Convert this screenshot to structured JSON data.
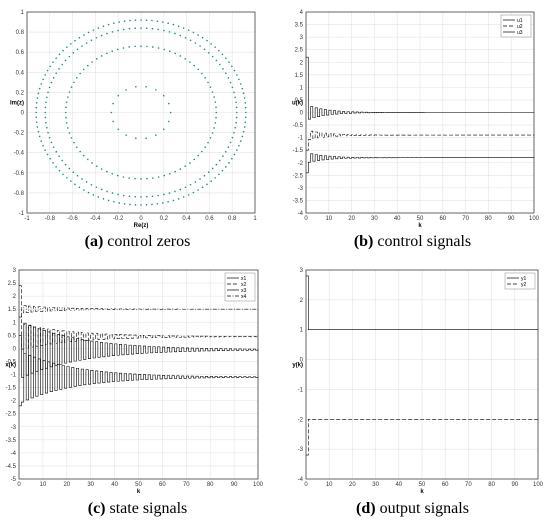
{
  "captions": [
    {
      "letter": "(a)",
      "text": " control zeros"
    },
    {
      "letter": "(b)",
      "text": " control signals"
    },
    {
      "letter": "(c)",
      "text": " state signals"
    },
    {
      "letter": "(d)",
      "text": " output signals"
    }
  ],
  "chart_data": [
    {
      "type": "scatter",
      "xlabel": "Re(z)",
      "ylabel": "Im(z)",
      "xlim": [
        -1,
        1
      ],
      "ylim": [
        -1,
        1
      ],
      "xticks": [
        -1,
        -0.8,
        -0.6,
        -0.4,
        -0.2,
        0,
        0.2,
        0.4,
        0.6,
        0.8,
        1
      ],
      "yticks": [
        -1,
        -0.8,
        -0.6,
        -0.4,
        -0.2,
        0,
        0.2,
        0.4,
        0.6,
        0.8,
        1
      ],
      "grid": true,
      "marker_color": "#1a8a8a",
      "rings": [
        {
          "radius": 0.92,
          "points": 120
        },
        {
          "radius": 0.84,
          "points": 104
        },
        {
          "radius": 0.66,
          "points": 80
        },
        {
          "radius": 0.26,
          "points": 18
        }
      ]
    },
    {
      "type": "line",
      "xlabel": "k",
      "ylabel": "u(k)",
      "xlim": [
        0,
        100
      ],
      "ylim": [
        -4,
        4
      ],
      "xticks": [
        0,
        10,
        20,
        30,
        40,
        50,
        60,
        70,
        80,
        90,
        100
      ],
      "yticks": [
        -4,
        -3.5,
        -3,
        -2.5,
        -2,
        -1.5,
        -1,
        -0.5,
        0,
        0.5,
        1,
        1.5,
        2,
        2.5,
        3,
        3.5,
        4
      ],
      "grid": true,
      "legend": "top-right",
      "series": [
        {
          "name": "u1",
          "style": "solid",
          "steady": 0,
          "initial": 2.2,
          "amplitude": 0.3,
          "decay": 0.12
        },
        {
          "name": "u2",
          "style": "dashed",
          "steady": -0.9,
          "initial": -1.5,
          "amplitude": 0.2,
          "decay": 0.12
        },
        {
          "name": "u3",
          "style": "solid",
          "steady": -1.8,
          "initial": -2.4,
          "amplitude": 0.2,
          "decay": 0.12
        }
      ]
    },
    {
      "type": "line",
      "xlabel": "k",
      "ylabel": "x(k)",
      "xlim": [
        0,
        100
      ],
      "ylim": [
        -5,
        3
      ],
      "xticks": [
        0,
        10,
        20,
        30,
        40,
        50,
        60,
        70,
        80,
        90,
        100
      ],
      "yticks": [
        -5,
        -4.5,
        -4,
        -3.5,
        -3,
        -2.5,
        -2,
        -1.5,
        -1,
        -0.5,
        0,
        0.5,
        1,
        1.5,
        2,
        2.5,
        3
      ],
      "grid": true,
      "legend": "top-right",
      "series": [
        {
          "name": "x1",
          "style": "solid",
          "steady": -1.1,
          "initial": -2.2,
          "amplitude": 1.0,
          "decay": 0.045
        },
        {
          "name": "x2",
          "style": "dashed",
          "steady": 0.45,
          "initial": 2.4,
          "amplitude": 0.5,
          "decay": 0.045
        },
        {
          "name": "x3",
          "style": "solid",
          "steady": -0.05,
          "initial": 0.5,
          "amplitude": 1.1,
          "decay": 0.04
        },
        {
          "name": "x4",
          "style": "dashdot",
          "steady": 1.5,
          "initial": 1.2,
          "amplitude": 0.15,
          "decay": 0.06
        }
      ]
    },
    {
      "type": "line",
      "xlabel": "k",
      "ylabel": "y(k)",
      "xlim": [
        0,
        100
      ],
      "ylim": [
        -4,
        3
      ],
      "xticks": [
        0,
        10,
        20,
        30,
        40,
        50,
        60,
        70,
        80,
        90,
        100
      ],
      "yticks": [
        -4,
        -3,
        -2,
        -1,
        0,
        1,
        2,
        3
      ],
      "grid": true,
      "legend": "top-right",
      "series": [
        {
          "name": "y1",
          "style": "solid",
          "steady": 1,
          "initial": 2.8,
          "amplitude": 0,
          "decay": 1
        },
        {
          "name": "y2",
          "style": "dashed",
          "steady": -2,
          "initial": -3.2,
          "amplitude": 0,
          "decay": 1
        }
      ]
    }
  ]
}
